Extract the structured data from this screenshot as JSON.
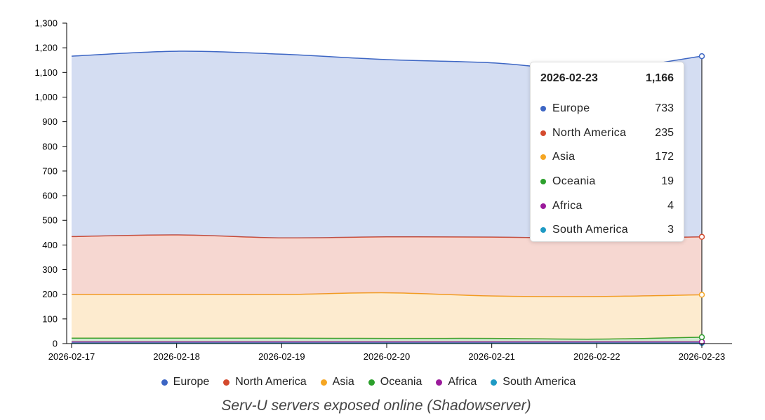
{
  "chart_data": {
    "type": "area",
    "stacked": true,
    "x": [
      "2026-02-17",
      "2026-02-18",
      "2026-02-19",
      "2026-02-20",
      "2026-02-21",
      "2026-02-22",
      "2026-02-23"
    ],
    "ylim": [
      0,
      1300
    ],
    "yticks": [
      0,
      100,
      200,
      300,
      400,
      500,
      600,
      700,
      800,
      900,
      1000,
      1100,
      1200,
      1300
    ],
    "ytick_labels": [
      "0",
      "100",
      "200",
      "300",
      "400",
      "500",
      "600",
      "700",
      "800",
      "900",
      "1,000",
      "1,100",
      "1,200",
      "1,300"
    ],
    "series": [
      {
        "name": "South America",
        "color": "#1f9ac4",
        "values": [
          3,
          3,
          3,
          3,
          3,
          3,
          3
        ]
      },
      {
        "name": "Africa",
        "color": "#9b1a9b",
        "values": [
          4,
          4,
          4,
          4,
          4,
          4,
          4
        ]
      },
      {
        "name": "Oceania",
        "color": "#2ca02c",
        "values": [
          15,
          15,
          15,
          14,
          14,
          11,
          19
        ]
      },
      {
        "name": "Asia",
        "color": "#f5a623",
        "values": [
          177,
          177,
          177,
          185,
          172,
          173,
          172
        ]
      },
      {
        "name": "North America",
        "color": "#d44a2e",
        "values": [
          235,
          242,
          230,
          227,
          239,
          236,
          235
        ]
      },
      {
        "name": "Europe",
        "color": "#3d66c4",
        "values": [
          732,
          745,
          745,
          719,
          707,
          684,
          733
        ]
      }
    ],
    "legend_order": [
      "Europe",
      "North America",
      "Asia",
      "Oceania",
      "Africa",
      "South America"
    ],
    "legend_position": "bottom",
    "grid": false,
    "caption": "Serv-U servers exposed online (Shadowserver)",
    "tooltip": {
      "date": "2026-02-23",
      "total": "1,166",
      "rows": [
        {
          "name": "Europe",
          "value": "733",
          "color": "#3d66c4"
        },
        {
          "name": "North America",
          "value": "235",
          "color": "#d44a2e"
        },
        {
          "name": "Asia",
          "value": "172",
          "color": "#f5a623"
        },
        {
          "name": "Oceania",
          "value": "19",
          "color": "#2ca02c"
        },
        {
          "name": "Africa",
          "value": "4",
          "color": "#9b1a9b"
        },
        {
          "name": "South America",
          "value": "3",
          "color": "#1f9ac4"
        }
      ]
    }
  }
}
